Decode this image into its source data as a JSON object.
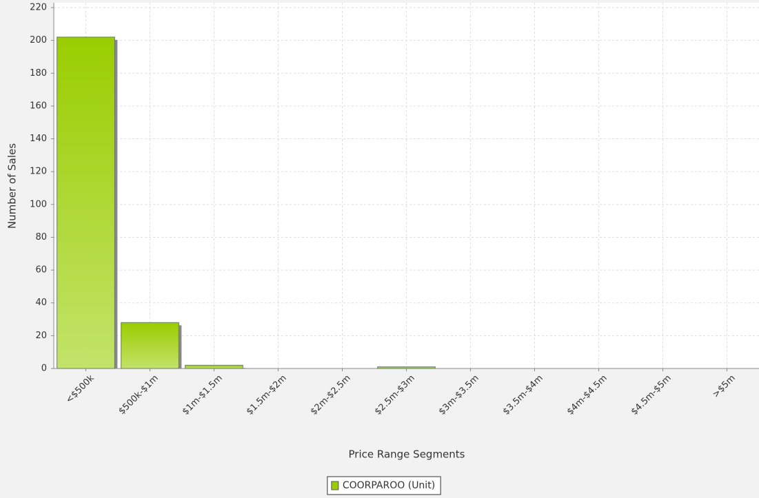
{
  "chart_data": {
    "type": "bar",
    "categories": [
      "<$500k",
      "$500k-$1m",
      "$1m-$1.5m",
      "$1.5m-$2m",
      "$2m-$2.5m",
      "$2.5m-$3m",
      "$3m-$3.5m",
      "$3.5m-$4m",
      "$4m-$4.5m",
      "$4.5m-$5m",
      ">$5m"
    ],
    "series": [
      {
        "name": "COORPAROO (Unit)",
        "color": "#9acd00",
        "values": [
          202,
          28,
          2,
          0,
          0,
          1,
          0,
          0,
          0,
          0,
          0
        ]
      }
    ],
    "x_label": "Price Range Segments",
    "y_label": "Number of Sales",
    "ylim": [
      0,
      220
    ],
    "yticks": [
      0,
      20,
      40,
      60,
      80,
      100,
      120,
      140,
      160,
      180,
      200,
      220
    ],
    "grid": true,
    "legend": "bottom"
  }
}
